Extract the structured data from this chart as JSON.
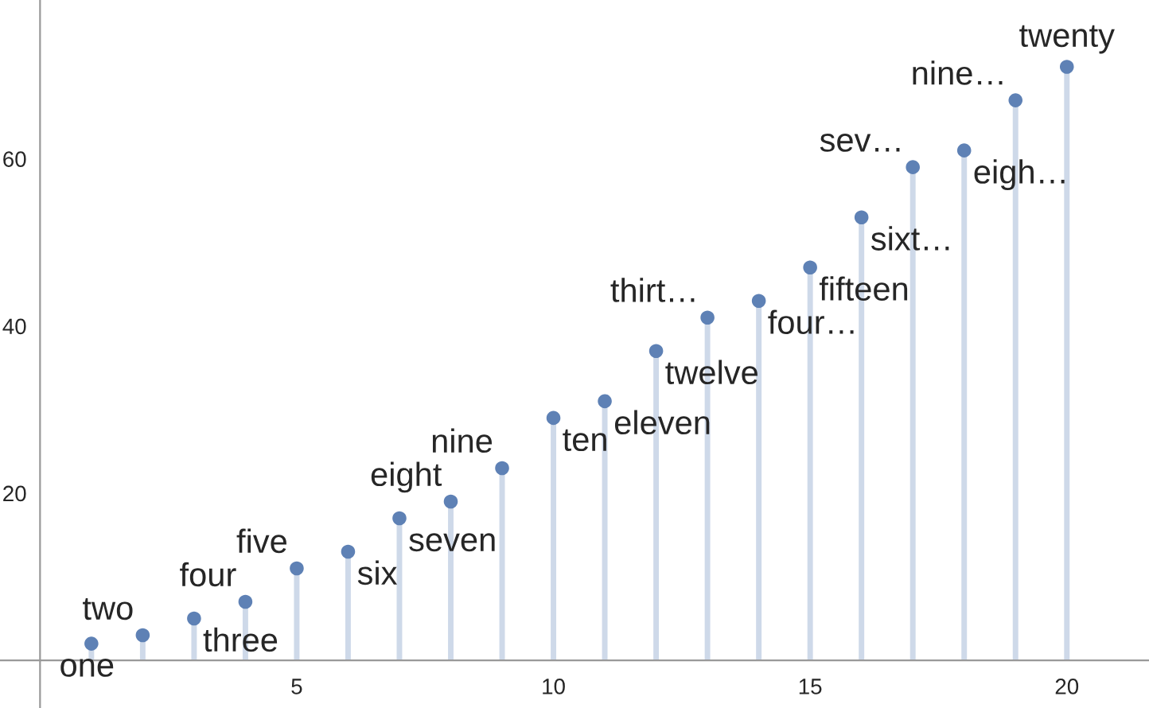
{
  "chart_data": {
    "type": "lollipop",
    "x": [
      1,
      2,
      3,
      4,
      5,
      6,
      7,
      8,
      9,
      10,
      11,
      12,
      13,
      14,
      15,
      16,
      17,
      18,
      19,
      20
    ],
    "series": [
      {
        "color": "#5e81b5",
        "values": [
          2,
          3,
          5,
          7,
          11,
          13,
          17,
          19,
          23,
          29,
          31,
          37,
          41,
          43,
          47,
          53,
          59,
          61,
          67,
          71
        ]
      }
    ],
    "annotations": [
      {
        "text": "one",
        "x": 1,
        "y": 2
      },
      {
        "text": "two",
        "x": 2,
        "y": 3
      },
      {
        "text": "three",
        "x": 3,
        "y": 5
      },
      {
        "text": "four",
        "x": 4,
        "y": 7
      },
      {
        "text": "five",
        "x": 5,
        "y": 11
      },
      {
        "text": "six",
        "x": 6,
        "y": 13
      },
      {
        "text": "seven",
        "x": 7,
        "y": 17
      },
      {
        "text": "eight",
        "x": 8,
        "y": 19
      },
      {
        "text": "nine",
        "x": 9,
        "y": 23
      },
      {
        "text": "ten",
        "x": 10,
        "y": 29
      },
      {
        "text": "eleven",
        "x": 11,
        "y": 31
      },
      {
        "text": "twelve",
        "x": 12,
        "y": 37
      },
      {
        "text": "thirt…",
        "x": 13,
        "y": 41
      },
      {
        "text": "four…",
        "x": 14,
        "y": 43
      },
      {
        "text": "fifteen",
        "x": 15,
        "y": 47
      },
      {
        "text": "sixt…",
        "x": 16,
        "y": 53
      },
      {
        "text": "sev…",
        "x": 17,
        "y": 59
      },
      {
        "text": "eigh…",
        "x": 18,
        "y": 61
      },
      {
        "text": "nine…",
        "x": 19,
        "y": 67
      },
      {
        "text": "twenty",
        "x": 20,
        "y": 71
      }
    ],
    "xlim": [
      -0.78,
      21.6
    ],
    "ylim": [
      -5.7,
      79
    ],
    "xticks": [
      5,
      10,
      15,
      20
    ],
    "yticks": [
      20,
      40,
      60
    ],
    "marker": "circle",
    "grid": false,
    "legend": false
  }
}
